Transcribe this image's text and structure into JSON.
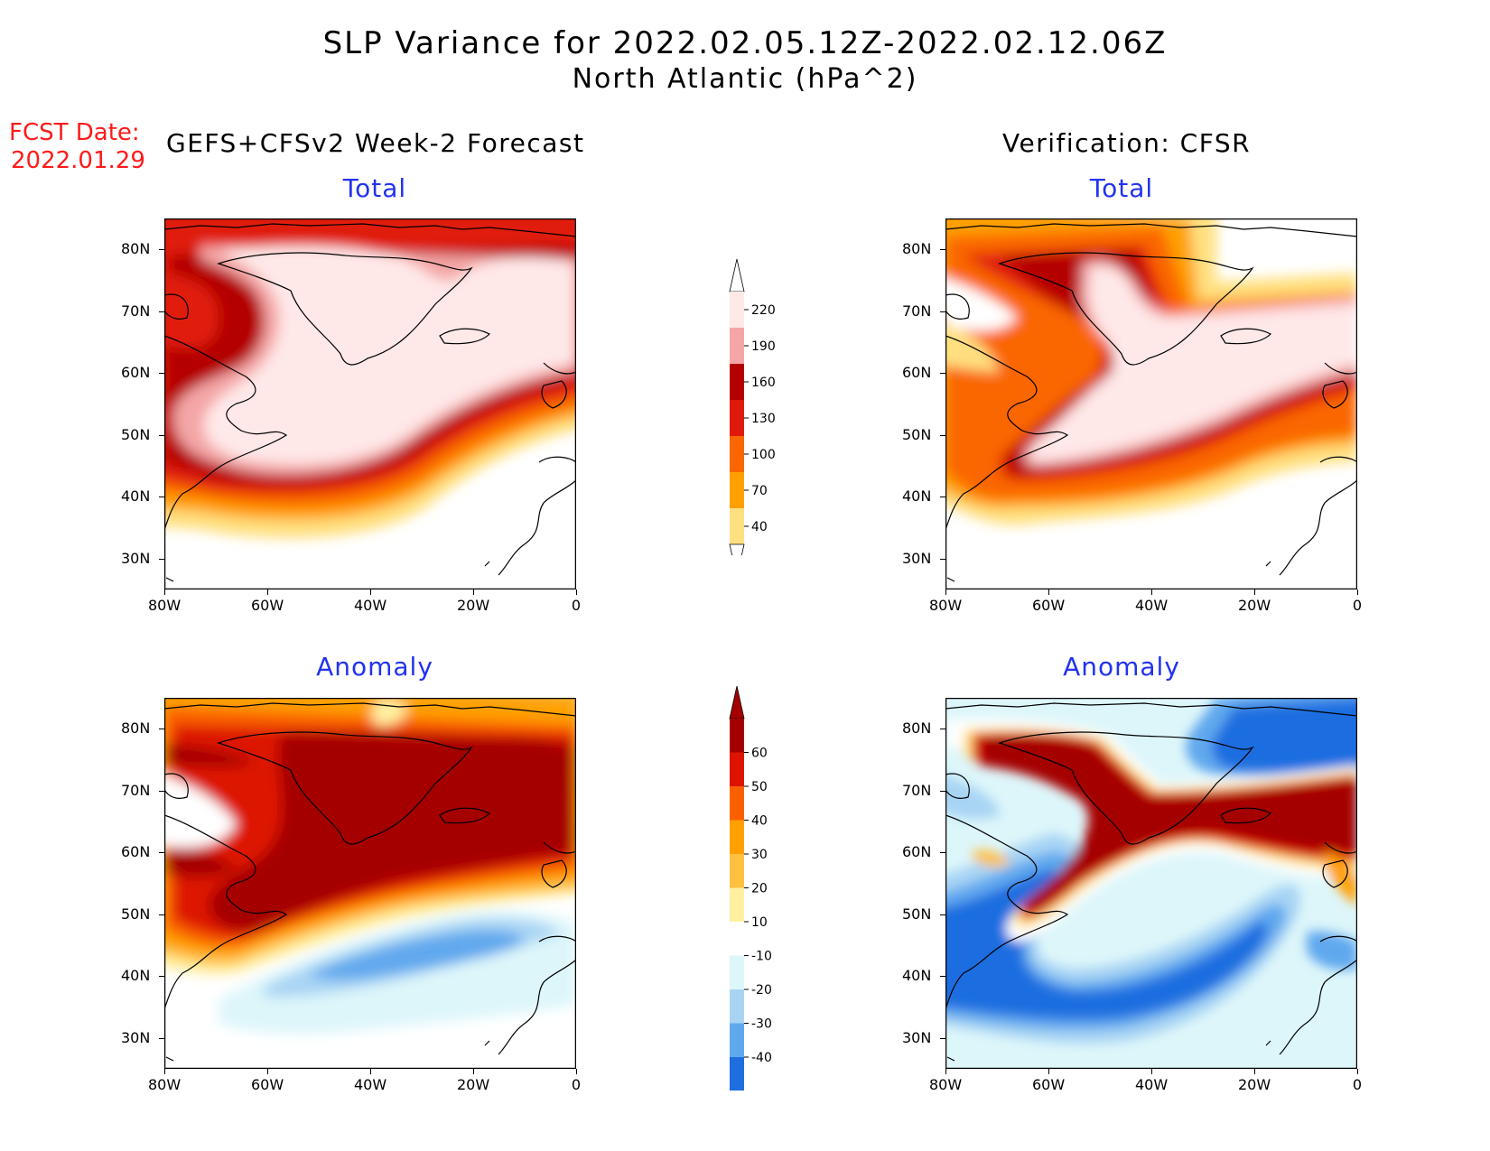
{
  "title": {
    "line1": "SLP Variance for 2022.02.05.12Z-2022.02.12.06Z",
    "line2": "North Atlantic (hPa^2)"
  },
  "fcst_date": {
    "label": "FCST Date:",
    "value": "2022.01.29"
  },
  "columns": {
    "left": "GEFS+CFSv2 Week-2 Forecast",
    "right": "Verification: CFSR"
  },
  "panel_titles": {
    "total": "Total",
    "anomaly": "Anomaly"
  },
  "axes": {
    "lat_labels": [
      "80N",
      "70N",
      "60N",
      "50N",
      "40N",
      "30N"
    ],
    "lon_labels": [
      "80W",
      "60W",
      "40W",
      "20W",
      "0"
    ],
    "lat_range": [
      25,
      85
    ],
    "lon_range": [
      -80,
      0
    ]
  },
  "colorbars": {
    "total": {
      "labels": [
        "220",
        "190",
        "160",
        "130",
        "100",
        "70",
        "40"
      ],
      "colors": [
        "#ffe8e8",
        "#f4a6a6",
        "#b50000",
        "#e01a0a",
        "#fa6600",
        "#ffa000",
        "#ffe080"
      ]
    },
    "anomaly": {
      "labels": [
        "60",
        "50",
        "40",
        "30",
        "20",
        "10",
        "-10",
        "-20",
        "-30",
        "-40"
      ],
      "colors": [
        "#a50000",
        "#dd1500",
        "#fa6000",
        "#ffa000",
        "#ffc040",
        "#fff0a0",
        "#ffffff",
        "#ddf6fa",
        "#a8d4f4",
        "#60a8ee",
        "#1e6ee0"
      ]
    }
  },
  "colors": {
    "fcst_red": "#ff1a1a",
    "panel_title_blue": "#2233ee"
  }
}
